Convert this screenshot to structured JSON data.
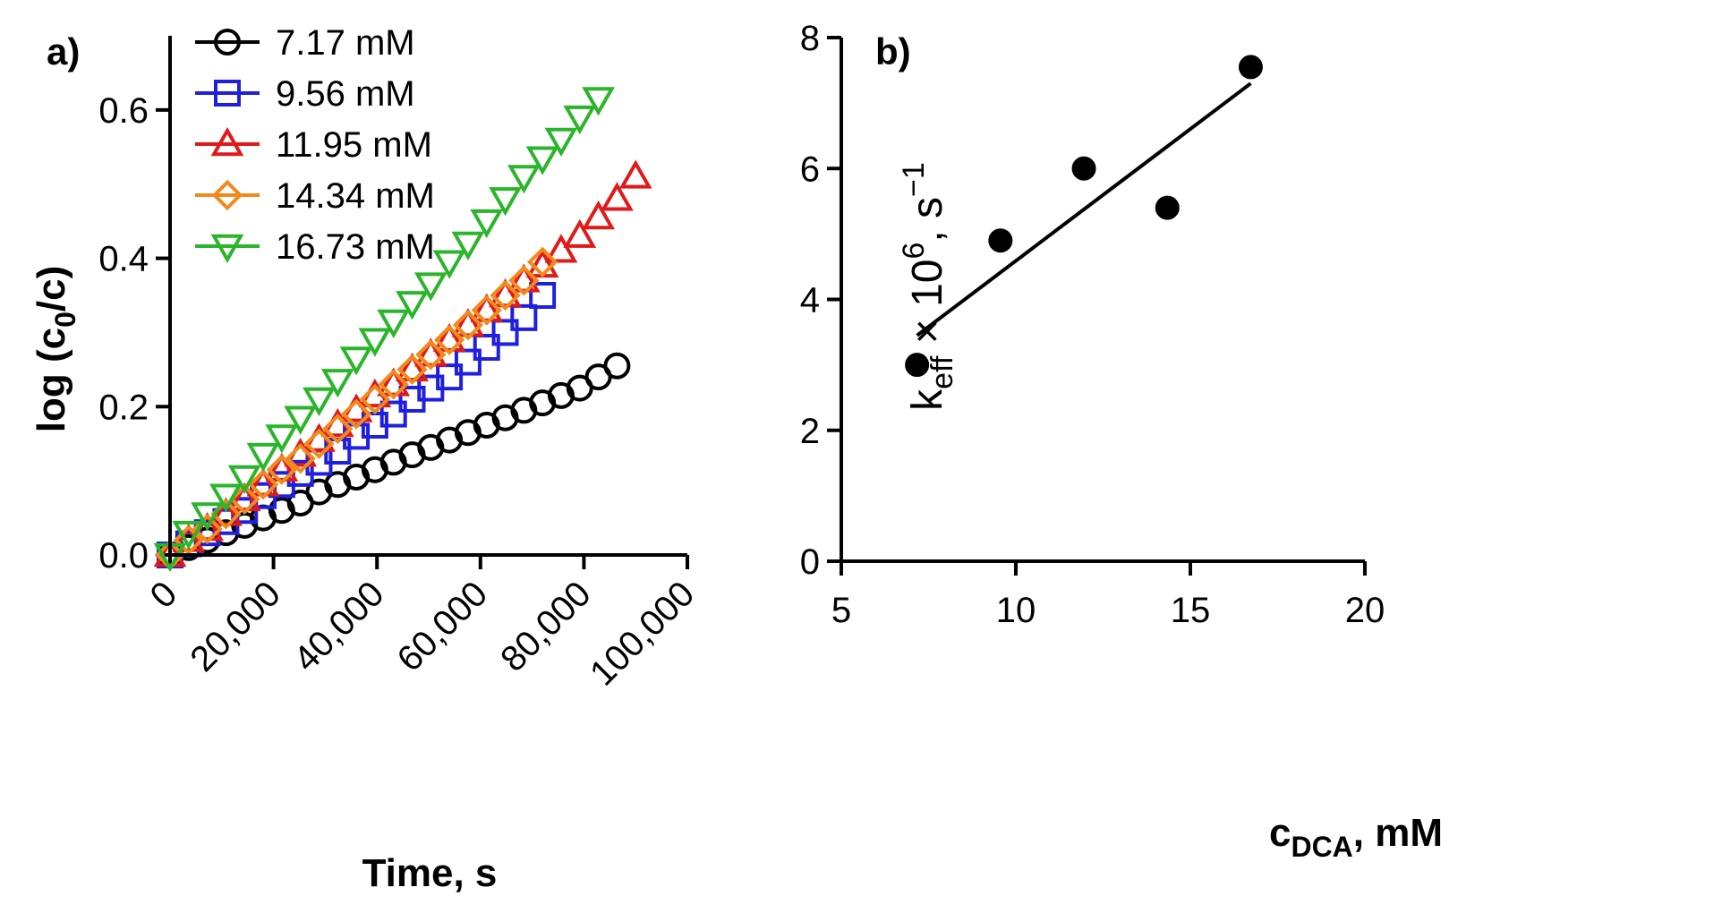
{
  "chart_data": [
    {
      "type": "scatter",
      "panel_label": "a)",
      "xlabel": "Time, s",
      "ylabel_main": "log (c",
      "ylabel_sub": "0",
      "ylabel_end": "/c)",
      "xlim": [
        0,
        100000
      ],
      "ylim": [
        0,
        0.7
      ],
      "xticks": [
        0,
        20000,
        40000,
        60000,
        80000,
        100000
      ],
      "xtick_labels": [
        "0",
        "20,000",
        "40,000",
        "60,000",
        "80,000",
        "100,000"
      ],
      "yticks": [
        0.0,
        0.2,
        0.4,
        0.6
      ],
      "ytick_labels": [
        "0.0",
        "0.2",
        "0.4",
        "0.6"
      ],
      "legend_position": "top-left",
      "series": [
        {
          "name": "7.17 mM",
          "marker": "circle",
          "color": "#000000",
          "x": [
            0,
            3600,
            7200,
            10800,
            14400,
            18000,
            21600,
            25200,
            28800,
            32400,
            36000,
            39600,
            43200,
            46800,
            50400,
            54000,
            57600,
            61200,
            64800,
            68400,
            72000,
            75600,
            79200,
            82800,
            86400
          ],
          "y": [
            0,
            0.01,
            0.02,
            0.03,
            0.04,
            0.05,
            0.06,
            0.07,
            0.085,
            0.095,
            0.105,
            0.115,
            0.125,
            0.135,
            0.145,
            0.155,
            0.165,
            0.175,
            0.185,
            0.195,
            0.205,
            0.215,
            0.225,
            0.24,
            0.255
          ]
        },
        {
          "name": "9.56 mM",
          "marker": "square",
          "color": "#1f1fe0",
          "x": [
            0,
            3600,
            7200,
            10800,
            14400,
            18000,
            21600,
            25200,
            28800,
            32400,
            36000,
            39600,
            43200,
            46800,
            50400,
            54000,
            57600,
            61200,
            64800,
            68400,
            72000
          ],
          "y": [
            0,
            0.015,
            0.03,
            0.045,
            0.06,
            0.08,
            0.095,
            0.11,
            0.125,
            0.14,
            0.16,
            0.175,
            0.19,
            0.21,
            0.225,
            0.24,
            0.26,
            0.28,
            0.3,
            0.32,
            0.35
          ]
        },
        {
          "name": "11.95 mM",
          "marker": "triangle-up",
          "color": "#e01a1a",
          "x": [
            0,
            3600,
            7200,
            10800,
            14400,
            18000,
            21600,
            25200,
            28800,
            32400,
            36000,
            39600,
            43200,
            46800,
            50400,
            54000,
            57600,
            61200,
            64800,
            68400,
            72000,
            75600,
            79200,
            82800,
            86400,
            90000
          ],
          "y": [
            0,
            0.02,
            0.035,
            0.055,
            0.075,
            0.095,
            0.115,
            0.135,
            0.155,
            0.175,
            0.195,
            0.215,
            0.23,
            0.25,
            0.27,
            0.29,
            0.31,
            0.33,
            0.35,
            0.37,
            0.39,
            0.41,
            0.43,
            0.455,
            0.48,
            0.51
          ]
        },
        {
          "name": "14.34 mM",
          "marker": "diamond",
          "color": "#f08a1c",
          "x": [
            0,
            3600,
            7200,
            10800,
            14400,
            18000,
            21600,
            25200,
            28800,
            32400,
            36000,
            39600,
            43200,
            46800,
            50400,
            54000,
            57600,
            61200,
            64800,
            68400,
            72000
          ],
          "y": [
            0,
            0.02,
            0.035,
            0.055,
            0.075,
            0.095,
            0.115,
            0.13,
            0.15,
            0.17,
            0.19,
            0.21,
            0.23,
            0.25,
            0.27,
            0.29,
            0.31,
            0.33,
            0.35,
            0.37,
            0.395
          ]
        },
        {
          "name": "16.73 mM",
          "marker": "triangle-down",
          "color": "#2bb52b",
          "x": [
            0,
            3600,
            7200,
            10800,
            14400,
            18000,
            21600,
            25200,
            28800,
            32400,
            36000,
            39600,
            43200,
            46800,
            50400,
            54000,
            57600,
            61200,
            64800,
            68400,
            72000,
            75600,
            79200,
            82800
          ],
          "y": [
            0,
            0.03,
            0.055,
            0.08,
            0.105,
            0.135,
            0.16,
            0.185,
            0.21,
            0.235,
            0.265,
            0.29,
            0.315,
            0.34,
            0.365,
            0.395,
            0.42,
            0.45,
            0.48,
            0.51,
            0.535,
            0.56,
            0.59,
            0.615
          ]
        }
      ]
    },
    {
      "type": "scatter",
      "panel_label": "b)",
      "xlabel_main": "c",
      "xlabel_sub": "DCA",
      "xlabel_end": ", mM",
      "ylabel_main": "k",
      "ylabel_sub": "eff",
      "ylabel_mid": " × 10",
      "ylabel_sup": "6",
      "ylabel_end": ", s",
      "ylabel_sup2": "−1",
      "xlim": [
        5,
        20
      ],
      "ylim": [
        0,
        8
      ],
      "xticks": [
        5,
        10,
        15,
        20
      ],
      "xtick_labels": [
        "5",
        "10",
        "15",
        "20"
      ],
      "yticks": [
        0,
        2,
        4,
        6,
        8
      ],
      "ytick_labels": [
        "0",
        "2",
        "4",
        "6",
        "8"
      ],
      "series": [
        {
          "name": "k_eff",
          "marker": "filled-circle",
          "color": "#000000",
          "x": [
            7.17,
            9.56,
            11.95,
            14.34,
            16.73
          ],
          "y": [
            3.0,
            4.9,
            6.0,
            5.4,
            7.55
          ]
        }
      ],
      "fit_line": {
        "x": [
          7.17,
          16.73
        ],
        "y": [
          3.45,
          7.3
        ]
      }
    }
  ]
}
